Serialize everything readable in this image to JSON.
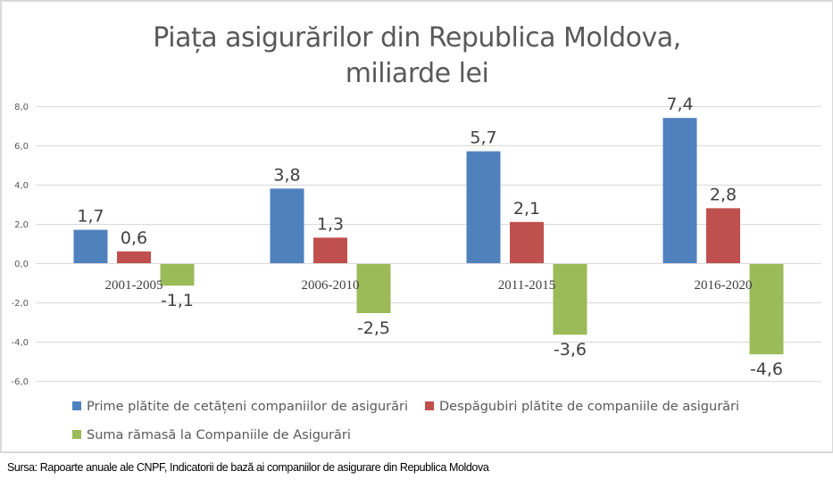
{
  "chart_data": {
    "type": "bar",
    "title_lines": [
      "Piața asigurărilor din Republica Moldova,",
      "miliarde lei"
    ],
    "categories": [
      "2001-2005",
      "2006-2010",
      "2011-2015",
      "2016-2020"
    ],
    "series": [
      {
        "name": "Prime plătite de cetățeni companiilor de asigurări",
        "color": "#4f81bd",
        "values": [
          1.7,
          3.8,
          5.7,
          7.4
        ],
        "labels": [
          "1,7",
          "3,8",
          "5,7",
          "7,4"
        ]
      },
      {
        "name": "Despăgubiri plătite de companiile de asigurări",
        "color": "#c0504d",
        "values": [
          0.6,
          1.3,
          2.1,
          2.8
        ],
        "labels": [
          "0,6",
          "1,3",
          "2,1",
          "2,8"
        ]
      },
      {
        "name": "Suma rămasă la Companiile de Asigurări",
        "color": "#9bbb59",
        "values": [
          -1.1,
          -2.5,
          -3.6,
          -4.6
        ],
        "labels": [
          "-1,1",
          "-2,5",
          "-3,6",
          "-4,6"
        ]
      }
    ],
    "y_ticks": [
      8,
      6,
      4,
      2,
      0,
      -2,
      -4,
      -6
    ],
    "y_tick_labels": [
      "8,0",
      "6,0",
      "4,0",
      "2,0",
      "0,0",
      "-2,0",
      "-4,0",
      "-6,0"
    ],
    "ylim": [
      -6,
      8
    ],
    "xlabel": "",
    "ylabel": "",
    "grid": true,
    "legend_position": "bottom"
  },
  "source_note": "Sursa: Rapoarte anuale ale CNPF, Indicatorii de bază ai companiilor de asigurare din Republica Moldova"
}
